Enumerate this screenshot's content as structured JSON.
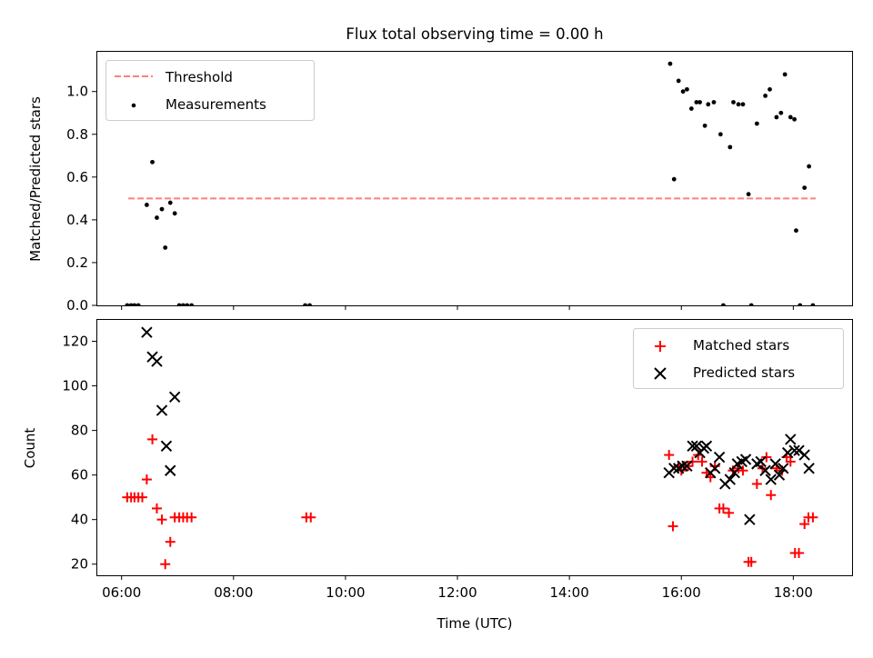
{
  "chart_data": [
    {
      "type": "scatter",
      "title": "Flux total observing time = 0.00 h",
      "ylabel": "Matched/Predicted stars",
      "xlabel": "",
      "xlim": [
        5.55,
        19.05
      ],
      "ylim": [
        0,
        1.19
      ],
      "yticks": [
        0.0,
        0.2,
        0.4,
        0.6,
        0.8,
        1.0
      ],
      "ytick_labels": [
        "0.0",
        "0.2",
        "0.4",
        "0.6",
        "0.8",
        "1.0"
      ],
      "legend_position": "top-left",
      "threshold": {
        "name": "Threshold",
        "y": 0.5,
        "x_range": [
          6.12,
          18.4
        ],
        "color": "#ff7f7f"
      },
      "series": [
        {
          "name": "Measurements",
          "color": "#000000",
          "marker": "dot",
          "x": [
            6.1,
            6.17,
            6.23,
            6.3,
            6.45,
            6.55,
            6.63,
            6.72,
            6.78,
            6.87,
            6.95,
            7.03,
            7.1,
            7.17,
            7.25,
            9.28,
            9.36,
            15.8,
            15.87,
            15.95,
            16.03,
            16.1,
            16.18,
            16.27,
            16.33,
            16.42,
            16.48,
            16.58,
            16.7,
            16.75,
            16.87,
            16.93,
            17.02,
            17.1,
            17.2,
            17.25,
            17.35,
            17.5,
            17.58,
            17.7,
            17.78,
            17.85,
            17.95,
            18.02,
            18.05,
            18.12,
            18.2,
            18.28,
            18.35
          ],
          "y": [
            0.0,
            0.0,
            0.0,
            0.0,
            0.47,
            0.67,
            0.41,
            0.45,
            0.27,
            0.48,
            0.43,
            0.0,
            0.0,
            0.0,
            0.0,
            0.0,
            0.0,
            1.13,
            0.59,
            1.05,
            1.0,
            1.01,
            0.92,
            0.95,
            0.95,
            0.84,
            0.94,
            0.95,
            0.8,
            0.0,
            0.74,
            0.95,
            0.94,
            0.94,
            0.52,
            0.0,
            0.85,
            0.98,
            1.01,
            0.88,
            0.9,
            1.08,
            0.88,
            0.87,
            0.35,
            0.0,
            0.55,
            0.65,
            0.0
          ]
        }
      ]
    },
    {
      "type": "scatter",
      "title": "",
      "xlabel": "Time (UTC)",
      "ylabel": "Count",
      "xlim": [
        5.55,
        19.05
      ],
      "ylim": [
        15,
        130
      ],
      "xticks": [
        6,
        8,
        10,
        12,
        14,
        16,
        18
      ],
      "xtick_labels": [
        "06:00",
        "08:00",
        "10:00",
        "12:00",
        "14:00",
        "16:00",
        "18:00"
      ],
      "yticks": [
        20,
        40,
        60,
        80,
        100,
        120
      ],
      "ytick_labels": [
        "20",
        "40",
        "60",
        "80",
        "100",
        "120"
      ],
      "legend_position": "top-right",
      "series": [
        {
          "name": "Matched stars",
          "color": "#ff0000",
          "marker": "plus",
          "x": [
            6.1,
            6.17,
            6.23,
            6.3,
            6.37,
            6.45,
            6.55,
            6.63,
            6.72,
            6.78,
            6.87,
            6.95,
            7.03,
            7.1,
            7.17,
            7.25,
            9.3,
            9.38,
            15.78,
            15.85,
            15.95,
            16.0,
            16.05,
            16.12,
            16.2,
            16.3,
            16.37,
            16.45,
            16.52,
            16.6,
            16.68,
            16.75,
            16.85,
            16.92,
            17.02,
            17.1,
            17.2,
            17.25,
            17.35,
            17.45,
            17.52,
            17.6,
            17.7,
            17.8,
            17.88,
            17.95,
            18.03,
            18.1,
            18.2,
            18.27,
            18.35
          ],
          "y": [
            50,
            50,
            50,
            50,
            50,
            58,
            76,
            45,
            40,
            20,
            30,
            41,
            41,
            41,
            41,
            41,
            41,
            41,
            69,
            37,
            64,
            62,
            64,
            64,
            66,
            69,
            66,
            61,
            59,
            64,
            45,
            45,
            43,
            62,
            63,
            62,
            21,
            21,
            56,
            63,
            68,
            51,
            63,
            62,
            68,
            66,
            25,
            25,
            38,
            41,
            41
          ]
        },
        {
          "name": "Predicted stars",
          "color": "#000000",
          "marker": "x",
          "x": [
            6.45,
            6.55,
            6.63,
            6.72,
            6.8,
            6.87,
            6.95,
            15.78,
            15.87,
            15.95,
            16.02,
            16.1,
            16.2,
            16.27,
            16.33,
            16.4,
            16.45,
            16.52,
            16.6,
            16.68,
            16.78,
            16.87,
            16.95,
            17.0,
            17.08,
            17.15,
            17.22,
            17.35,
            17.42,
            17.5,
            17.6,
            17.68,
            17.75,
            17.82,
            17.9,
            17.95,
            18.02,
            18.1,
            18.2,
            18.28
          ],
          "y": [
            124,
            113,
            111,
            89,
            73,
            62,
            95,
            61,
            63,
            63,
            64,
            64,
            73,
            73,
            70,
            72,
            73,
            61,
            63,
            68,
            56,
            58,
            61,
            65,
            66,
            67,
            40,
            65,
            66,
            62,
            58,
            65,
            60,
            63,
            70,
            76,
            71,
            71,
            69,
            63
          ]
        }
      ]
    }
  ]
}
